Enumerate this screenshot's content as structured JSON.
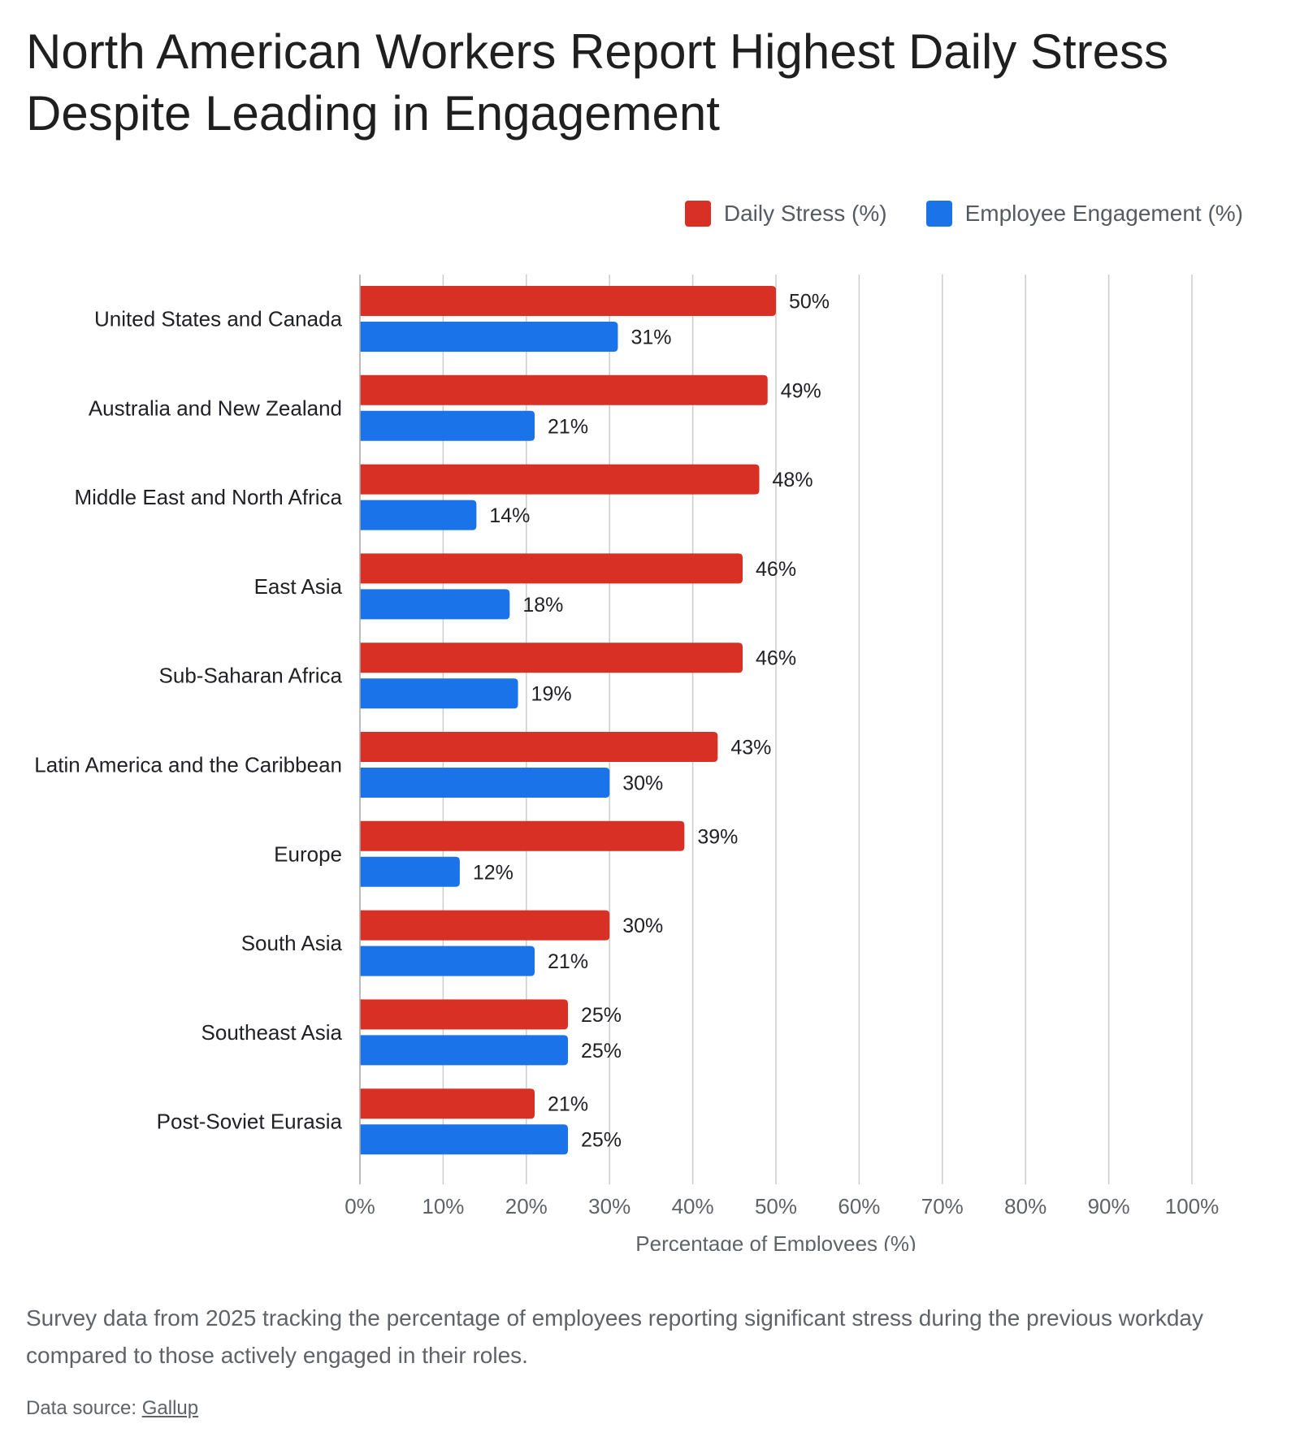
{
  "chart_data": {
    "type": "bar",
    "orientation": "horizontal",
    "title": "North American Workers Report Highest Daily Stress Despite Leading in Engagement",
    "xlabel": "Percentage of Employees (%)",
    "ylabel": "",
    "xlim": [
      0,
      100
    ],
    "xticks": [
      "0%",
      "10%",
      "20%",
      "30%",
      "40%",
      "50%",
      "60%",
      "70%",
      "80%",
      "90%",
      "100%"
    ],
    "grid": "vertical",
    "legend_position": "top-right",
    "categories": [
      "United States and Canada",
      "Australia and New Zealand",
      "Middle East and North Africa",
      "East Asia",
      "Sub-Saharan Africa",
      "Latin America and the Caribbean",
      "Europe",
      "South Asia",
      "Southeast Asia",
      "Post-Soviet Eurasia"
    ],
    "series": [
      {
        "name": "Daily Stress (%)",
        "color": "#d93025",
        "values": [
          50,
          49,
          48,
          46,
          46,
          43,
          39,
          30,
          25,
          21
        ],
        "labels": [
          "50%",
          "49%",
          "48%",
          "46%",
          "46%",
          "43%",
          "39%",
          "30%",
          "25%",
          "21%"
        ]
      },
      {
        "name": "Employee Engagement (%)",
        "color": "#1a73e8",
        "values": [
          31,
          21,
          14,
          18,
          19,
          30,
          12,
          21,
          25,
          25
        ],
        "labels": [
          "31%",
          "21%",
          "14%",
          "18%",
          "19%",
          "30%",
          "12%",
          "21%",
          "25%",
          "25%"
        ]
      }
    ]
  },
  "description": "Survey data from 2025 tracking the percentage of employees reporting significant stress during the previous workday compared to those actively engaged in their roles.",
  "source": {
    "prefix": "Data source: ",
    "link_text": "Gallup"
  }
}
